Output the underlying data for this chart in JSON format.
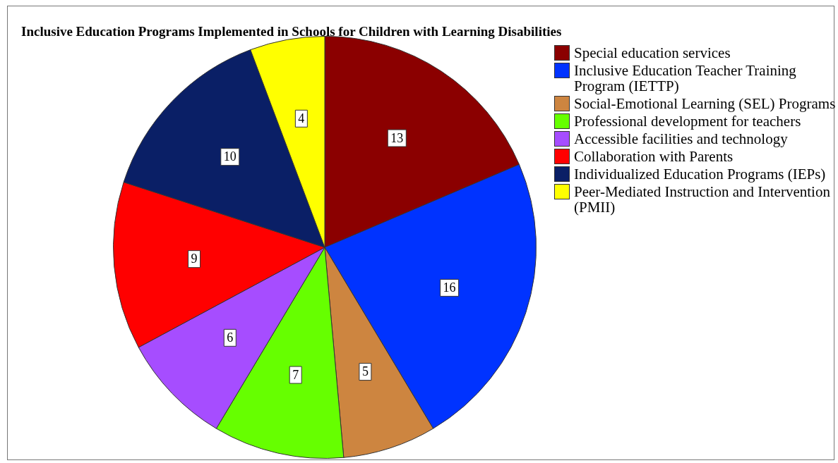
{
  "chart_data": {
    "type": "pie",
    "title": "Inclusive Education Programs Implemented in Schools for Children with Learning Disabilities",
    "categories": [
      "Special education services",
      "Inclusive Education Teacher Training Program (IETTP)",
      "Social-Emotional Learning (SEL) Programs",
      "Professional development for teachers",
      "Accessible facilities and technology",
      "Collaboration with Parents",
      "Individualized Education Programs (IEPs)",
      "Peer-Mediated Instruction and Intervention (PMII)"
    ],
    "values": [
      13,
      16,
      5,
      7,
      6,
      9,
      10,
      4
    ],
    "colors": [
      "#8b0000",
      "#0033ff",
      "#cd8540",
      "#66ff00",
      "#a64dff",
      "#ff0000",
      "#0a1f66",
      "#ffff00"
    ],
    "data_labels": true,
    "legend": "right"
  }
}
